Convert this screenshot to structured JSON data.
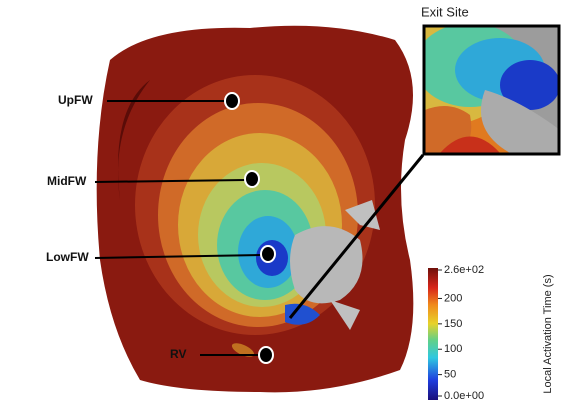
{
  "labels": [
    "UpFW",
    "MidFW",
    "LowFW",
    "RV"
  ],
  "inset": {
    "title": "Exit Site"
  },
  "colorbar": {
    "title": "Local Activation Time (s)",
    "range": [
      0,
      260
    ],
    "ticks": [
      {
        "value": 0,
        "label": "0.0e+00"
      },
      50,
      100,
      150,
      200,
      {
        "value": 260,
        "label": "2.6e+02"
      }
    ]
  }
}
